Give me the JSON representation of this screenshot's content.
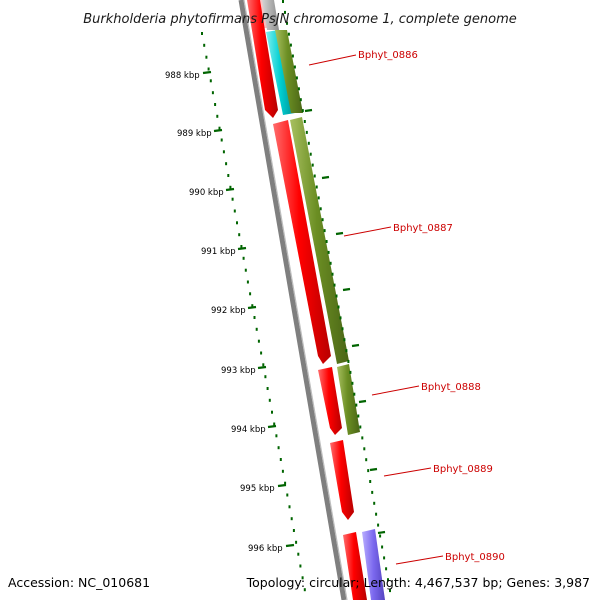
{
  "title": "Burkholderia phytofirmans PsJN chromosome 1, complete genome",
  "footer": {
    "accession": "Accession: NC_010681",
    "summary": "Topology: circular; Length: 4,467,537 bp; Genes: 3,987"
  },
  "ruler_labels": [
    "988 kbp",
    "989 kbp",
    "990 kbp",
    "991 kbp",
    "992 kbp",
    "993 kbp",
    "994 kbp",
    "995 kbp",
    "996 kbp"
  ],
  "genes": [
    "Bphyt_0886",
    "Bphyt_0887",
    "Bphyt_0888",
    "Bphyt_0889",
    "Bphyt_0890"
  ],
  "colors": {
    "cds": "#ff0000",
    "cog_green": "#6b8e23",
    "cog_cyan": "#00ced1",
    "cog_purple": "#7b68ee",
    "ruler_dots": "#006400",
    "gene_label": "#cc0000",
    "backbone": "#7f7f7f"
  }
}
